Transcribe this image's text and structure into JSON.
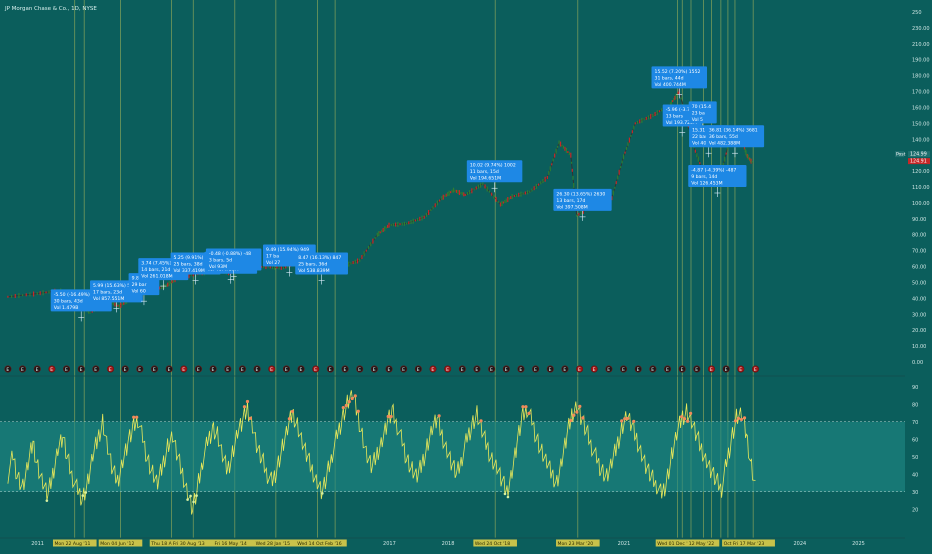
{
  "header": {
    "symbol_label": "JP Morgan Chase & Co., 1D, NYSE"
  },
  "colors": {
    "background": "#0b5e5c",
    "oscillator_band": "#1f8a86",
    "oscillator_line": "#e8e85a",
    "vline": "#c8c85a",
    "annotation_box": "#1e88e5",
    "earnings_badge": "#a01818",
    "price_badge_post": "#1f6f6e",
    "price_badge_last": "#c62828",
    "candle_up": "#2e7d32",
    "candle_down": "#c62828"
  },
  "chart_data": [
    {
      "type": "line",
      "title": "JP Morgan Chase & Co., 1D, NYSE",
      "yscale": "log",
      "ylim": [
        0,
        250
      ],
      "yticks": [
        0.0,
        10.0,
        20.0,
        30.0,
        40.0,
        50.0,
        60.0,
        70.0,
        80.0,
        90.0,
        100.0,
        110.0,
        120.0,
        130.0,
        140.0,
        150.0,
        160.0,
        170.0,
        180.0,
        190.0,
        210.0,
        230.0,
        250
      ],
      "ytick_labels": [
        "0.00",
        "10.00",
        "20.00",
        "30.00",
        "40.00",
        "50.00",
        "60.00",
        "70.00",
        "80.00",
        "90.00",
        "100.00",
        "110.00",
        "120.00",
        "130.00",
        "140.00",
        "150.00",
        "160.00",
        "170.00",
        "180.00",
        "190.00",
        "210.00",
        "230.00",
        "250"
      ],
      "x": [
        2010.5,
        2011.0,
        2011.4,
        2011.7,
        2011.9,
        2012.2,
        2012.4,
        2012.6,
        2012.9,
        2013.2,
        2013.4,
        2013.7,
        2014.0,
        2014.3,
        2014.6,
        2014.9,
        2015.2,
        2015.5,
        2015.8,
        2016.0,
        2016.2,
        2016.5,
        2016.8,
        2017.0,
        2017.3,
        2017.6,
        2017.9,
        2018.1,
        2018.3,
        2018.6,
        2018.9,
        2019.1,
        2019.4,
        2019.7,
        2019.9,
        2020.1,
        2020.2,
        2020.5,
        2020.8,
        2021.0,
        2021.2,
        2021.5,
        2021.8,
        2021.95,
        2022.2,
        2022.4,
        2022.6,
        2022.8,
        2023.0,
        2023.1,
        2023.2
      ],
      "values": [
        41,
        43,
        45,
        36,
        31,
        38,
        35,
        40,
        44,
        48,
        53,
        55,
        57,
        56,
        59,
        60,
        59,
        65,
        62,
        58,
        60,
        64,
        80,
        86,
        87,
        91,
        103,
        108,
        105,
        112,
        99,
        104,
        107,
        116,
        138,
        130,
        92,
        99,
        103,
        129,
        150,
        155,
        162,
        170,
        135,
        115,
        110,
        138,
        142,
        130,
        125
      ],
      "xtick_labels": [
        "2011",
        "2017",
        "2018",
        "2021",
        "2024",
        "2025"
      ],
      "xtick_years": [
        2011,
        2017,
        2018,
        2021,
        2024,
        2025
      ],
      "annotations": [
        {
          "line1": "-5.50 (-16.49%) -550",
          "line2": "30 bars, 43d",
          "line3": "Vol 1.479B",
          "x": 2011.75,
          "y": 31.8
        },
        {
          "line1": "5.99 (15.63%) 599",
          "line2": "17 bars, 23d",
          "line3": "Vol 857.551M",
          "x": 2012.35,
          "y": 37.5
        },
        {
          "line1": "9.85 (21.",
          "line2": "29 bar",
          "line3": "Vol 60",
          "x": 2012.82,
          "y": 42.0
        },
        {
          "line1": "3.74 (7.45%) 374",
          "line2": "14 bars, 21d",
          "line3": "Vol 261.018M",
          "x": 2013.15,
          "y": 51.5
        },
        {
          "line1": "5.25 (9.91%) 525",
          "line2": "25 bars, 38d",
          "line3": "Vol 337.419M",
          "x": 2013.7,
          "y": 55.0
        },
        {
          "line1": "8.12 (14.83%) 812",
          "line2": "26 bars, 37d",
          "line3": "Vol 467.731M",
          "x": 2014.3,
          "y": 55.5
        },
        {
          "line1": "-0.48 (-0.88%) -48",
          "line2": "3 bars, 5d",
          "line3": "Vol 93M",
          "x": 2014.35,
          "y": 57.5
        },
        {
          "line1": "9.49 (15.94%) 949",
          "line2": "17 ba",
          "line3": "Vol 27",
          "x": 2015.3,
          "y": 60.0
        },
        {
          "line1": "8.47 (16.13%) 847",
          "line2": "25 bars, 36d",
          "line3": "Vol 538.839M",
          "x": 2015.85,
          "y": 55.0
        },
        {
          "line1": "10.02 (9.74%) 1002",
          "line2": "11 bars, 15d",
          "line3": "Vol 194.651M",
          "x": 2018.8,
          "y": 113.0
        },
        {
          "line1": "26.30 (13.65%) 2630",
          "line2": "13 bars, 17d",
          "line3": "Vol 397.508M",
          "x": 2020.3,
          "y": 95.0
        },
        {
          "line1": "15.52 (7.20%) 1552",
          "line2": "31 bars, 44d",
          "line3": "Vol 400.744M",
          "x": 2021.95,
          "y": 172.0
        },
        {
          "line1": "-5.96 (-3.7",
          "line2": "13 bars",
          "line3": "Vol 193.725M",
          "x": 2022.0,
          "y": 148.0
        },
        {
          "line1": "70 (15.4",
          "line2": "23 ba",
          "line3": "Vol 5",
          "x": 2022.35,
          "y": 150.0
        },
        {
          "line1": "15.31 (",
          "line2": "22 bars, 47d",
          "line3": "Vol 404.049M",
          "x": 2022.45,
          "y": 135.0
        },
        {
          "line1": "36.81 (36.14%) 3681",
          "line2": "36 bars, 55d",
          "line3": "Vol 482.388M",
          "x": 2022.9,
          "y": 135.0
        },
        {
          "line1": "-4.87 (-4.39%) -487",
          "line2": "9 bars, 14d",
          "line3": "Vol 126.453M",
          "x": 2022.6,
          "y": 110.0
        }
      ],
      "price_labels": [
        {
          "label": "Post",
          "value": "124.99"
        },
        {
          "label": "",
          "value": "124.91"
        }
      ],
      "earnings_marker": "E"
    },
    {
      "type": "line",
      "title": "",
      "ylim": [
        15,
        95
      ],
      "yticks": [
        20,
        30,
        40,
        50,
        60,
        70,
        80,
        90
      ],
      "ytick_labels": [
        "20",
        "30",
        "40",
        "50",
        "60",
        "70",
        "80",
        "90"
      ],
      "band": [
        30,
        70
      ],
      "series": [
        {
          "values": [
            40,
            50,
            38,
            32,
            45,
            58,
            44,
            35,
            28,
            40,
            55,
            62,
            48,
            38,
            30,
            26,
            35,
            50,
            60,
            70,
            55,
            42,
            36,
            48,
            58,
            66,
            72,
            60,
            48,
            40,
            34,
            45,
            56,
            62,
            50,
            40,
            30,
            20,
            32,
            48,
            58,
            66,
            62,
            50,
            42,
            52,
            64,
            70,
            78,
            68,
            55,
            48,
            40,
            35,
            44,
            55,
            65,
            75,
            68,
            58,
            50,
            42,
            36,
            30,
            40,
            52,
            62,
            72,
            80,
            86,
            75,
            62,
            50,
            44,
            52,
            60,
            70,
            76,
            68,
            58,
            48,
            42,
            38,
            46,
            56,
            66,
            72,
            62,
            54,
            46,
            40,
            50,
            60,
            68,
            74,
            64,
            56,
            48,
            44,
            36,
            30,
            42,
            58,
            72,
            78,
            70,
            60,
            52,
            46,
            40,
            35,
            48,
            62,
            74,
            80,
            72,
            64,
            56,
            48,
            42,
            38,
            46,
            56,
            66,
            74,
            68,
            60,
            52,
            44,
            38,
            34,
            28,
            36,
            50,
            62,
            72,
            76,
            70,
            62,
            54,
            48,
            42,
            36,
            32,
            46,
            60,
            72,
            74,
            62,
            44,
            30
          ]
        }
      ]
    }
  ],
  "xaxis_date_labels": [
    {
      "text": "Mon 22 Aug '11",
      "year": 2011.64
    },
    {
      "text": "Mon 04 Jun '12",
      "year": 2012.42
    },
    {
      "text": "Thu 18 Apr '13",
      "year": 2013.29
    },
    {
      "text": "Fri 30 Aug '13",
      "year": 2013.66
    },
    {
      "text": "Fri 16 May '14",
      "year": 2014.37
    },
    {
      "text": "Wed 28 Jan '15",
      "year": 2015.07
    },
    {
      "text": "Wed 14 Oct '15",
      "year": 2015.78
    },
    {
      "text": "Feb '16",
      "year": 2016.08
    },
    {
      "text": "Wed 24 Oct '18",
      "year": 2018.81
    },
    {
      "text": "Mon 23 Mar '20",
      "year": 2020.22
    },
    {
      "text": "Wed 01 Dec '21",
      "year": 2021.92
    },
    {
      "text": "12 May '22",
      "year": 2022.36
    },
    {
      "text": "Oct",
      "year": 2022.78
    },
    {
      "text": "Fri 17 Mar '23",
      "year": 2023.21
    }
  ],
  "vlines_years": [
    2011.64,
    2011.8,
    2012.42,
    2013.29,
    2013.66,
    2014.37,
    2015.07,
    2015.78,
    2016.08,
    2018.81,
    2020.22,
    2021.92,
    2022.0,
    2022.15,
    2022.36,
    2022.5,
    2022.66,
    2022.78,
    2022.9,
    2023.21
  ],
  "earnings_years": [
    2010.5,
    2010.75,
    2011.0,
    2011.25,
    2011.5,
    2011.75,
    2012.0,
    2012.25,
    2012.5,
    2012.75,
    2013.0,
    2013.25,
    2013.5,
    2013.75,
    2014.0,
    2014.25,
    2014.5,
    2014.75,
    2015.0,
    2015.25,
    2015.5,
    2015.75,
    2016.0,
    2016.25,
    2016.5,
    2016.75,
    2017.0,
    2017.25,
    2017.5,
    2017.75,
    2018.0,
    2018.25,
    2018.5,
    2018.75,
    2019.0,
    2019.25,
    2019.5,
    2019.75,
    2020.0,
    2020.25,
    2020.5,
    2020.75,
    2021.0,
    2021.25,
    2021.5,
    2021.75,
    2022.0,
    2022.25,
    2022.5,
    2022.75,
    2023.0,
    2023.25
  ]
}
